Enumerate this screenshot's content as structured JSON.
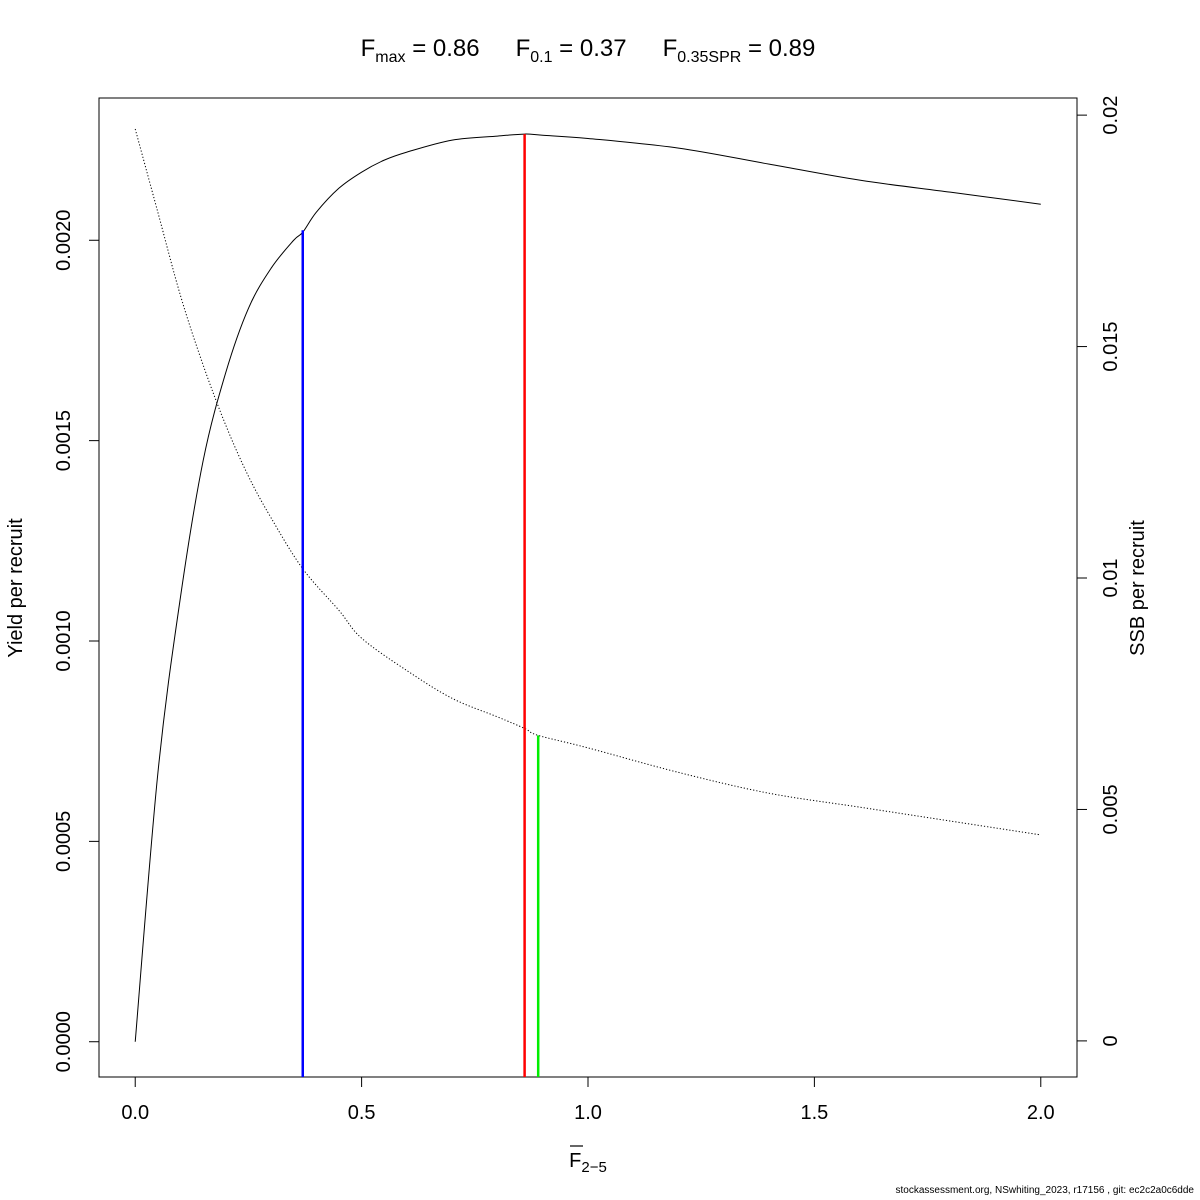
{
  "chart_data": {
    "type": "line",
    "title": {
      "fmax": {
        "base": "F",
        "sub": "max",
        "value": "0.86"
      },
      "f01": {
        "base": "F",
        "sub": "0.1",
        "value": "0.37"
      },
      "fspr": {
        "base": "F",
        "sub": "0.35SPR",
        "value": "0.89"
      }
    },
    "xlabel": {
      "base": "F",
      "sub": "2−5"
    },
    "ylabel_left": "Yield per recruit",
    "ylabel_right": "SSB per recruit",
    "xlim": [
      -0.08,
      2.08
    ],
    "ylim_left": [
      -8.8e-05,
      0.002355
    ],
    "ylim_right": [
      -0.00078,
      0.02037
    ],
    "x_ticks": [
      {
        "value": 0.0,
        "label": "0.0"
      },
      {
        "value": 0.5,
        "label": "0.5"
      },
      {
        "value": 1.0,
        "label": "1.0"
      },
      {
        "value": 1.5,
        "label": "1.5"
      },
      {
        "value": 2.0,
        "label": "2.0"
      }
    ],
    "y_left_ticks": [
      {
        "value": 0.0,
        "label": "0.0000"
      },
      {
        "value": 0.0005,
        "label": "0.0005"
      },
      {
        "value": 0.001,
        "label": "0.0010"
      },
      {
        "value": 0.0015,
        "label": "0.0015"
      },
      {
        "value": 0.002,
        "label": "0.0020"
      }
    ],
    "y_right_ticks": [
      {
        "value": 0.0,
        "label": "0"
      },
      {
        "value": 0.005,
        "label": "0.005"
      },
      {
        "value": 0.01,
        "label": "0.01"
      },
      {
        "value": 0.015,
        "label": "0.015"
      },
      {
        "value": 0.02,
        "label": "0.02"
      }
    ],
    "series": [
      {
        "axis": "left",
        "style": "solid",
        "color": "#000000",
        "x": [
          0.0,
          0.05,
          0.1,
          0.15,
          0.2,
          0.25,
          0.3,
          0.35,
          0.37,
          0.4,
          0.45,
          0.5,
          0.55,
          0.6,
          0.7,
          0.8,
          0.86,
          0.9,
          1.0,
          1.2,
          1.4,
          1.6,
          1.8,
          2.0
        ],
        "y": [
          0.0,
          0.00067,
          0.00111,
          0.00145,
          0.00167,
          0.00183,
          0.00193,
          0.002,
          0.00202,
          0.00207,
          0.00213,
          0.00217,
          0.0022,
          0.00222,
          0.00225,
          0.00226,
          0.002265,
          0.002262,
          0.002254,
          0.00223,
          0.00219,
          0.00215,
          0.00212,
          0.00209
        ]
      },
      {
        "axis": "right",
        "style": "dotted",
        "color": "#000000",
        "x": [
          0.0,
          0.05,
          0.1,
          0.15,
          0.2,
          0.25,
          0.3,
          0.37,
          0.45,
          0.5,
          0.6,
          0.7,
          0.8,
          0.86,
          0.89,
          1.0,
          1.2,
          1.4,
          1.6,
          1.8,
          2.0
        ],
        "y": [
          0.0197,
          0.0179,
          0.0161,
          0.0146,
          0.0133,
          0.0122,
          0.0113,
          0.0102,
          0.0093,
          0.0087,
          0.008,
          0.0074,
          0.007,
          0.00675,
          0.0066,
          0.00633,
          0.0058,
          0.00535,
          0.00505,
          0.00475,
          0.00445
        ]
      }
    ],
    "reference_lines": [
      {
        "name": "F0.1",
        "x": 0.37,
        "axis": "left",
        "y_top": 0.002025,
        "color": "#0000ff"
      },
      {
        "name": "Fmax",
        "x": 0.86,
        "axis": "left",
        "y_top": 0.002265,
        "color": "#ff0000"
      },
      {
        "name": "F0.35SPR",
        "x": 0.89,
        "axis": "right",
        "y_top": 0.0066,
        "color": "#00ee00"
      }
    ],
    "grid": false,
    "legend": "none"
  },
  "footer": "stockassessment.org, NSwhiting_2023, r17156 , git: ec2c2a0c6dde"
}
